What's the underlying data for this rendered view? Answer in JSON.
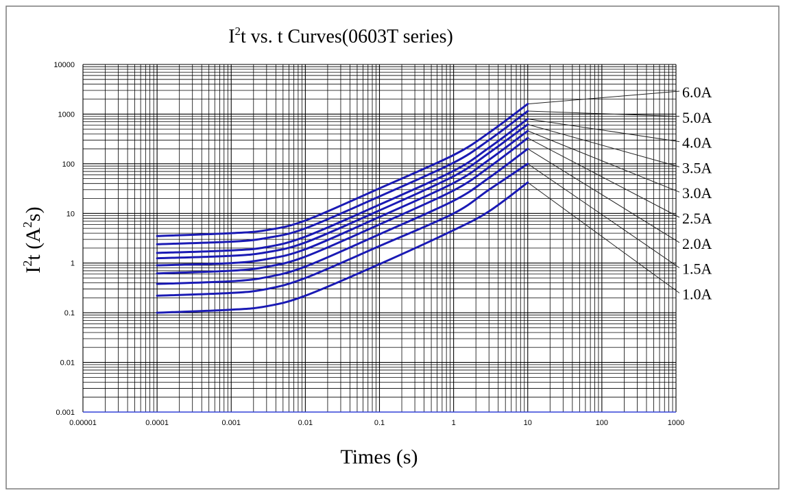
{
  "chart_data": {
    "type": "line",
    "title_parts": {
      "i": "I",
      "sup": "2",
      "rest": "t  vs. t  Curves(0603T series)"
    },
    "xlabel": "Times (s)",
    "ylabel_parts": {
      "i": "I",
      "sup1": "2",
      "t": "t (A",
      "sup2": "2",
      "s": "s)"
    },
    "x_scale": "log",
    "y_scale": "log",
    "xlim": [
      1e-05,
      1000
    ],
    "ylim": [
      0.001,
      10000
    ],
    "x_ticks": [
      "0.00001",
      "0.0001",
      "0.001",
      "0.01",
      "0.1",
      "1",
      "10",
      "100",
      "1000"
    ],
    "y_ticks": [
      "0.001",
      "0.01",
      "0.1",
      "1",
      "10",
      "100",
      "1000",
      "10000"
    ],
    "grid": true,
    "line_color": "#1a1ab4",
    "series": [
      {
        "name": "6.0A",
        "x": [
          0.0001,
          0.001,
          0.003,
          0.01,
          0.1,
          1,
          3,
          10
        ],
        "y": [
          3.5,
          4.0,
          4.6,
          7.2,
          32,
          150,
          420,
          1600
        ]
      },
      {
        "name": "5.0A",
        "x": [
          0.0001,
          0.001,
          0.003,
          0.01,
          0.1,
          1,
          3,
          10
        ],
        "y": [
          2.4,
          2.7,
          3.2,
          5.0,
          22,
          105,
          300,
          1150
        ]
      },
      {
        "name": "4.0A",
        "x": [
          0.0001,
          0.001,
          0.003,
          0.01,
          0.1,
          1,
          3,
          10
        ],
        "y": [
          1.6,
          1.8,
          2.1,
          3.4,
          15,
          72,
          210,
          800
        ]
      },
      {
        "name": "3.5A",
        "x": [
          0.0001,
          0.001,
          0.003,
          0.01,
          0.1,
          1,
          3,
          10
        ],
        "y": [
          1.25,
          1.4,
          1.65,
          2.6,
          11.5,
          56,
          165,
          620
        ]
      },
      {
        "name": "3.0A",
        "x": [
          0.0001,
          0.001,
          0.003,
          0.01,
          0.1,
          1,
          3,
          10
        ],
        "y": [
          0.9,
          1.0,
          1.2,
          1.9,
          8.5,
          41,
          120,
          460
        ]
      },
      {
        "name": "2.5A",
        "x": [
          0.0001,
          0.001,
          0.003,
          0.01,
          0.1,
          1,
          3,
          10
        ],
        "y": [
          0.62,
          0.7,
          0.84,
          1.35,
          6.0,
          29,
          85,
          330
        ]
      },
      {
        "name": "2.0A",
        "x": [
          0.0001,
          0.001,
          0.003,
          0.01,
          0.1,
          1,
          3,
          10
        ],
        "y": [
          0.38,
          0.43,
          0.52,
          0.85,
          3.8,
          18,
          52,
          200
        ]
      },
      {
        "name": "1.5A",
        "x": [
          0.0001,
          0.001,
          0.003,
          0.01,
          0.1,
          1,
          3,
          10
        ],
        "y": [
          0.22,
          0.25,
          0.3,
          0.5,
          2.2,
          10,
          30,
          100
        ]
      },
      {
        "name": "1.0A",
        "x": [
          0.0001,
          0.001,
          0.003,
          0.01,
          0.1,
          1,
          3,
          10
        ],
        "y": [
          0.1,
          0.115,
          0.135,
          0.22,
          0.95,
          4.6,
          11,
          42
        ]
      }
    ]
  }
}
